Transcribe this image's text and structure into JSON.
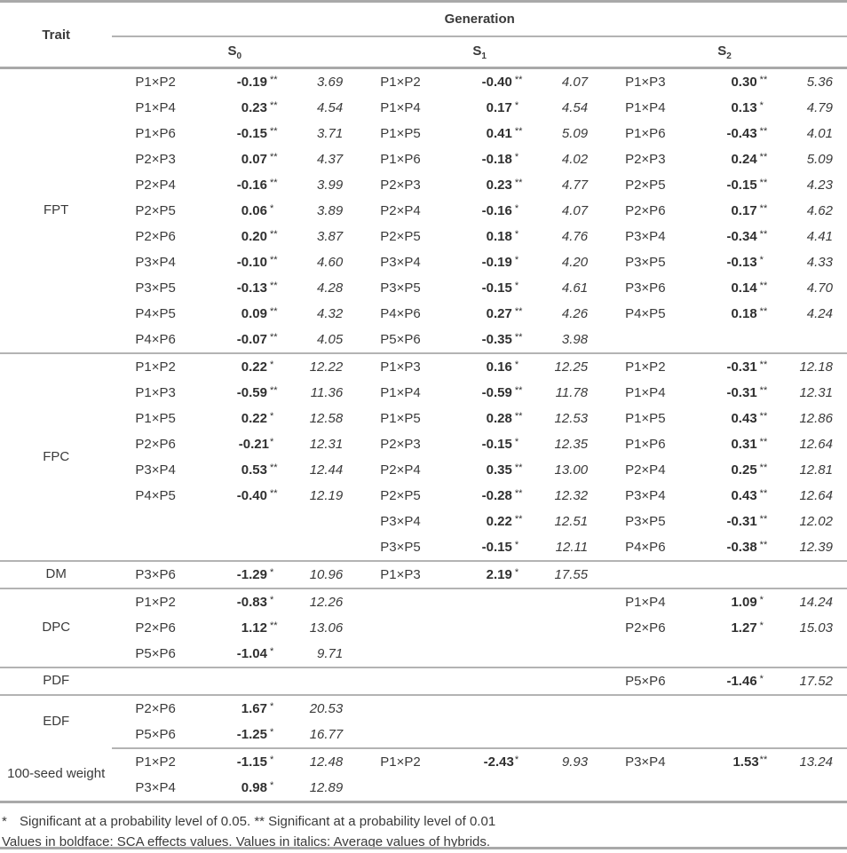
{
  "header": {
    "trait_label": "Trait",
    "generation_label": "Generation",
    "generations": [
      {
        "label": "S",
        "sub": "0"
      },
      {
        "label": "S",
        "sub": "1"
      },
      {
        "label": "S",
        "sub": "2"
      }
    ]
  },
  "sections": [
    {
      "trait": "FPT",
      "rule_full": true,
      "rows": [
        [
          {
            "cross": "P1×P2",
            "sca": "-0.19",
            "sig": "**",
            "avg": "3.69"
          },
          {
            "cross": "P1×P2",
            "sca": "-0.40",
            "sig": "**",
            "avg": "4.07"
          },
          {
            "cross": "P1×P3",
            "sca": "0.30",
            "sig": "**",
            "avg": "5.36"
          }
        ],
        [
          {
            "cross": "P1×P4",
            "sca": "0.23",
            "sig": "**",
            "avg": "4.54"
          },
          {
            "cross": "P1×P4",
            "sca": "0.17",
            "sig": "*",
            "avg": "4.54"
          },
          {
            "cross": "P1×P4",
            "sca": "0.13",
            "sig": "*",
            "avg": "4.79"
          }
        ],
        [
          {
            "cross": "P1×P6",
            "sca": "-0.15",
            "sig": "**",
            "avg": "3.71"
          },
          {
            "cross": "P1×P5",
            "sca": "0.41",
            "sig": "**",
            "avg": "5.09"
          },
          {
            "cross": "P1×P6",
            "sca": "-0.43",
            "sig": "**",
            "avg": "4.01"
          }
        ],
        [
          {
            "cross": "P2×P3",
            "sca": "0.07",
            "sig": "**",
            "avg": "4.37"
          },
          {
            "cross": "P1×P6",
            "sca": "-0.18",
            "sig": "*",
            "avg": "4.02"
          },
          {
            "cross": "P2×P3",
            "sca": "0.24",
            "sig": "**",
            "avg": "5.09"
          }
        ],
        [
          {
            "cross": "P2×P4",
            "sca": "-0.16",
            "sig": "**",
            "avg": "3.99"
          },
          {
            "cross": "P2×P3",
            "sca": "0.23",
            "sig": "**",
            "avg": "4.77"
          },
          {
            "cross": "P2×P5",
            "sca": "-0.15",
            "sig": "**",
            "avg": "4.23"
          }
        ],
        [
          {
            "cross": "P2×P5",
            "sca": "0.06",
            "sig": "*",
            "avg": "3.89"
          },
          {
            "cross": "P2×P4",
            "sca": "-0.16",
            "sig": "*",
            "avg": "4.07"
          },
          {
            "cross": "P2×P6",
            "sca": "0.17",
            "sig": "**",
            "avg": "4.62"
          }
        ],
        [
          {
            "cross": "P2×P6",
            "sca": "0.20",
            "sig": "**",
            "avg": "3.87"
          },
          {
            "cross": "P2×P5",
            "sca": "0.18",
            "sig": "*",
            "avg": "4.76"
          },
          {
            "cross": "P3×P4",
            "sca": "-0.34",
            "sig": "**",
            "avg": "4.41"
          }
        ],
        [
          {
            "cross": "P3×P4",
            "sca": "-0.10",
            "sig": "**",
            "avg": "4.60"
          },
          {
            "cross": "P3×P4",
            "sca": "-0.19",
            "sig": "*",
            "avg": "4.20"
          },
          {
            "cross": "P3×P5",
            "sca": "-0.13",
            "sig": "*",
            "avg": "4.33"
          }
        ],
        [
          {
            "cross": "P3×P5",
            "sca": "-0.13",
            "sig": "**",
            "avg": "4.28"
          },
          {
            "cross": "P3×P5",
            "sca": "-0.15",
            "sig": "*",
            "avg": "4.61"
          },
          {
            "cross": "P3×P6",
            "sca": "0.14",
            "sig": "**",
            "avg": "4.70"
          }
        ],
        [
          {
            "cross": "P4×P5",
            "sca": "0.09",
            "sig": "**",
            "avg": "4.32"
          },
          {
            "cross": "P4×P6",
            "sca": "0.27",
            "sig": "**",
            "avg": "4.26"
          },
          {
            "cross": "P4×P5",
            "sca": "0.18",
            "sig": "**",
            "avg": "4.24"
          }
        ],
        [
          {
            "cross": "P4×P6",
            "sca": "-0.07",
            "sig": "**",
            "avg": "4.05"
          },
          {
            "cross": "P5×P6",
            "sca": "-0.35",
            "sig": "**",
            "avg": "3.98"
          },
          null
        ]
      ]
    },
    {
      "trait": "FPC",
      "rule_full": true,
      "rows": [
        [
          {
            "cross": "P1×P2",
            "sca": "0.22",
            "sig": "*",
            "avg": "12.22"
          },
          {
            "cross": "P1×P3",
            "sca": "0.16",
            "sig": "*",
            "avg": "12.25"
          },
          {
            "cross": "P1×P2",
            "sca": "-0.31",
            "sig": "**",
            "avg": "12.18"
          }
        ],
        [
          {
            "cross": "P1×P3",
            "sca": "-0.59",
            "sig": "**",
            "avg": "11.36"
          },
          {
            "cross": "P1×P4",
            "sca": "-0.59",
            "sig": "**",
            "avg": "11.78"
          },
          {
            "cross": "P1×P4",
            "sca": "-0.31",
            "sig": "**",
            "avg": "12.31"
          }
        ],
        [
          {
            "cross": "P1×P5",
            "sca": "0.22",
            "sig": "*",
            "avg": "12.58"
          },
          {
            "cross": "P1×P5",
            "sca": "0.28",
            "sig": "**",
            "avg": "12.53"
          },
          {
            "cross": "P1×P5",
            "sca": "0.43",
            "sig": "**",
            "avg": "12.86"
          }
        ],
        [
          {
            "cross": "P2×P6",
            "sca": "-0.21",
            "sig": "*",
            "tight": true,
            "avg": "12.31"
          },
          {
            "cross": "P2×P3",
            "sca": "-0.15",
            "sig": "*",
            "avg": "12.35"
          },
          {
            "cross": "P1×P6",
            "sca": "0.31",
            "sig": "**",
            "avg": "12.64"
          }
        ],
        [
          {
            "cross": "P3×P4",
            "sca": "0.53",
            "sig": "**",
            "avg": "12.44"
          },
          {
            "cross": "P2×P4",
            "sca": "0.35",
            "sig": "**",
            "avg": "13.00"
          },
          {
            "cross": "P2×P4",
            "sca": "0.25",
            "sig": "**",
            "avg": "12.81"
          }
        ],
        [
          {
            "cross": "P4×P5",
            "sca": "-0.40",
            "sig": "**",
            "avg": "12.19"
          },
          {
            "cross": "P2×P5",
            "sca": "-0.28",
            "sig": "**",
            "avg": "12.32"
          },
          {
            "cross": "P3×P4",
            "sca": "0.43",
            "sig": "**",
            "avg": "12.64"
          }
        ],
        [
          null,
          {
            "cross": "P3×P4",
            "sca": "0.22",
            "sig": "**",
            "avg": "12.51"
          },
          {
            "cross": "P3×P5",
            "sca": "-0.31",
            "sig": "**",
            "avg": "12.02"
          }
        ],
        [
          null,
          {
            "cross": "P3×P5",
            "sca": "-0.15",
            "sig": "*",
            "avg": "12.11"
          },
          {
            "cross": "P4×P6",
            "sca": "-0.38",
            "sig": "**",
            "avg": "12.39"
          }
        ]
      ]
    },
    {
      "trait": "DM",
      "rule_full": true,
      "rows": [
        [
          {
            "cross": "P3×P6",
            "sca": "-1.29",
            "sig": "*",
            "avg": "10.96"
          },
          {
            "cross": "P1×P3",
            "sca": "2.19",
            "sig": "*",
            "avg": "17.55"
          },
          null
        ]
      ]
    },
    {
      "trait": "DPC",
      "rule_full": true,
      "rows": [
        [
          {
            "cross": "P1×P2",
            "sca": "-0.83",
            "sig": "*",
            "avg": "12.26"
          },
          null,
          {
            "cross": "P1×P4",
            "sca": "1.09",
            "sig": "*",
            "avg": "14.24"
          }
        ],
        [
          {
            "cross": "P2×P6",
            "sca": "1.12",
            "sig": "**",
            "avg": "13.06"
          },
          null,
          {
            "cross": "P2×P6",
            "sca": "1.27",
            "sig": "*",
            "avg": "15.03"
          }
        ],
        [
          {
            "cross": "P5×P6",
            "sca": "-1.04",
            "sig": "*",
            "avg": "9.71"
          },
          null,
          null
        ]
      ]
    },
    {
      "trait": "PDF",
      "rule_full": true,
      "rows": [
        [
          null,
          null,
          {
            "cross": "P5×P6",
            "sca": "-1.46",
            "sig": "*",
            "avg": "17.52"
          }
        ]
      ]
    },
    {
      "trait": "EDF",
      "rule_full": true,
      "rows": [
        [
          {
            "cross": "P2×P6",
            "sca": "1.67",
            "sig": "*",
            "avg": "20.53"
          },
          null,
          null
        ],
        [
          {
            "cross": "P5×P6",
            "sca": "-1.25",
            "sig": "*",
            "avg": "16.77"
          },
          null,
          null
        ]
      ]
    },
    {
      "trait": "100-seed weight",
      "rule_full": false,
      "rows": [
        [
          {
            "cross": "P1×P2",
            "sca": "-1.15",
            "sig": "*",
            "avg": "12.48"
          },
          {
            "cross": "P1×P2",
            "sca": "-2.43",
            "sig": "*",
            "tight": true,
            "avg": "9.93"
          },
          {
            "cross": "P3×P4",
            "sca": "1.53",
            "sig": "**",
            "tight": true,
            "avg": "13.24"
          }
        ],
        [
          {
            "cross": "P3×P4",
            "sca": "0.98",
            "sig": "*",
            "avg": "12.89"
          },
          null,
          null
        ]
      ]
    }
  ],
  "footnotes": {
    "line1_marker": "*",
    "line1_text": "Significant at a probability level of 0.05. ** Significant at a probability level of 0.01",
    "line2_text": "Values in boldface: SCA effects values. Values in italics: Average values of hybrids."
  }
}
